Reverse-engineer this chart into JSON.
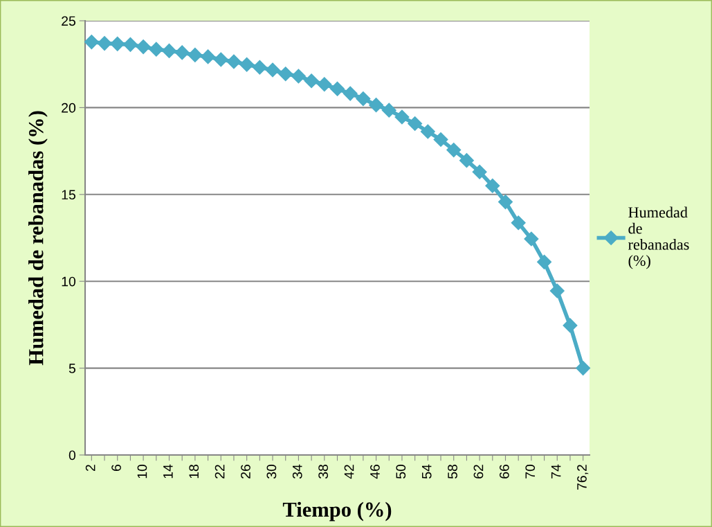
{
  "chart_data": {
    "type": "line",
    "xlabel": "Tiempo (%)",
    "ylabel": "Humedad de rebanadas (%)",
    "categories": [
      "2",
      null,
      "6",
      null,
      "10",
      null,
      "14",
      null,
      "18",
      null,
      "22",
      null,
      "26",
      null,
      "30",
      null,
      "34",
      null,
      "38",
      null,
      "42",
      null,
      "46",
      null,
      "50",
      null,
      "54",
      null,
      "58",
      null,
      "62",
      null,
      "66",
      null,
      "70",
      null,
      "74",
      null,
      "76,2"
    ],
    "series": [
      {
        "name": "Humedad de rebanadas (%)",
        "color": "#4bacc6",
        "values": [
          23.78,
          23.7,
          23.67,
          23.63,
          23.5,
          23.36,
          23.27,
          23.17,
          23.03,
          22.93,
          22.77,
          22.65,
          22.48,
          22.32,
          22.17,
          21.94,
          21.81,
          21.54,
          21.34,
          21.08,
          20.81,
          20.51,
          20.15,
          19.85,
          19.46,
          19.08,
          18.62,
          18.16,
          17.56,
          16.96,
          16.3,
          15.5,
          14.57,
          13.37,
          12.44,
          11.11,
          9.45,
          7.46,
          5.0
        ]
      }
    ],
    "ylim": [
      0,
      25
    ],
    "yticks": [
      0,
      5,
      10,
      15,
      20,
      25
    ],
    "grid": "y",
    "legend": "right",
    "marker": "diamond",
    "line_style": "solid"
  }
}
